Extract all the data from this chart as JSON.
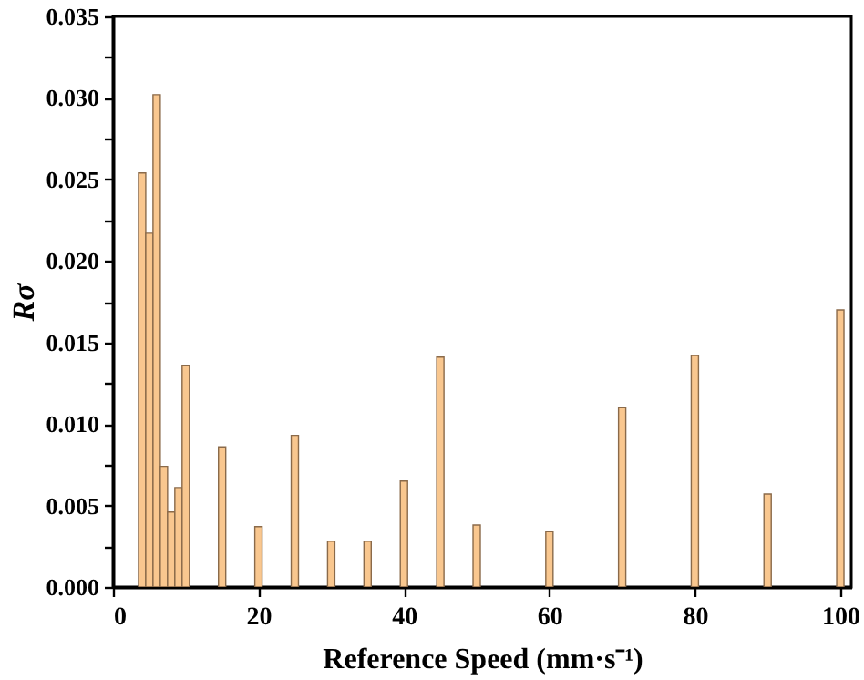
{
  "chart_data": {
    "type": "bar",
    "xlabel": "Reference Speed (mm·s⁻¹)",
    "ylabel": "Rσ",
    "x": [
      4,
      5,
      6,
      7,
      8,
      9,
      10,
      15,
      20,
      25,
      30,
      35,
      40,
      45,
      50,
      60,
      70,
      80,
      90,
      100
    ],
    "values": [
      0.0254,
      0.0217,
      0.0302,
      0.0074,
      0.0046,
      0.0061,
      0.0136,
      0.0086,
      0.0037,
      0.0093,
      0.0028,
      0.0028,
      0.0065,
      0.0141,
      0.0038,
      0.0034,
      0.011,
      0.0142,
      0.0057,
      0.017
    ],
    "color": "#f9c78f",
    "xlim": [
      0,
      101.5
    ],
    "xticks": [
      0,
      20,
      40,
      60,
      80,
      100
    ],
    "ylim": [
      0,
      0.035
    ],
    "yticks": [
      {
        "value": 0,
        "label": "0.000"
      },
      {
        "value": 0.0025,
        "label": null
      },
      {
        "value": 0.005,
        "label": "0.005"
      },
      {
        "value": 0.0075,
        "label": null
      },
      {
        "value": 0.01,
        "label": "0.010"
      },
      {
        "value": 0.0125,
        "label": null
      },
      {
        "value": 0.015,
        "label": "0.015"
      },
      {
        "value": 0.0175,
        "label": null
      },
      {
        "value": 0.02,
        "label": "0.020"
      },
      {
        "value": 0.0225,
        "label": null
      },
      {
        "value": 0.025,
        "label": "0.025"
      },
      {
        "value": 0.0275,
        "label": null
      },
      {
        "value": 0.03,
        "label": "0.030"
      },
      {
        "value": 0.0325,
        "label": null
      },
      {
        "value": 0.035,
        "label": "0.035"
      }
    ],
    "grid": false
  }
}
